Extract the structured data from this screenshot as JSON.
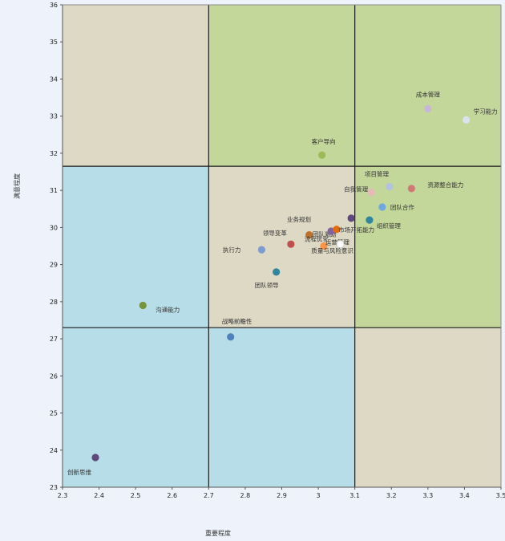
{
  "chart_data": {
    "type": "scatter",
    "title": "",
    "xlabel": "重要程度",
    "ylabel": "满意程度",
    "xlim": [
      2.3,
      3.5
    ],
    "ylim": [
      23,
      36
    ],
    "x_ticks": [
      "2.3",
      "2.4",
      "2.5",
      "2.6",
      "2.7",
      "2.8",
      "2.9",
      "3",
      "3.1",
      "3.2",
      "3.3",
      "3.4",
      "3.5"
    ],
    "y_ticks": [
      "23",
      "24",
      "25",
      "26",
      "27",
      "28",
      "29",
      "30",
      "31",
      "32",
      "33",
      "34",
      "35",
      "36"
    ],
    "quadrant_lines": {
      "x": [
        2.7,
        3.1
      ],
      "y": [
        27.3,
        31.65
      ]
    },
    "quadrant_colors": {
      "green": "#c4d79b",
      "beige": "#ddd9c4",
      "blue": "#b7dde8"
    },
    "points": [
      {
        "label": "执行力",
        "x": 2.845,
        "y": 29.4,
        "color": "#7d9bcf"
      },
      {
        "label": "沟通能力",
        "x": 2.52,
        "y": 27.9,
        "color": "#77933c"
      },
      {
        "label": "创新思维",
        "x": 2.39,
        "y": 23.8,
        "color": "#604a7b"
      },
      {
        "label": "战略前瞻性",
        "x": 2.76,
        "y": 27.05,
        "color": "#4f81bd"
      },
      {
        "label": "团队领导",
        "x": 2.885,
        "y": 28.8,
        "color": "#31859c"
      },
      {
        "label": "领导变革",
        "x": 2.925,
        "y": 29.55,
        "color": "#c0504d"
      },
      {
        "label": "团队激励",
        "x": 2.975,
        "y": 29.8,
        "color": "#c0722b"
      },
      {
        "label": "业务规划",
        "x": 3.035,
        "y": 29.9,
        "color": "#8064a2"
      },
      {
        "label": "客户导向",
        "x": 3.01,
        "y": 31.95,
        "color": "#9bbb59"
      },
      {
        "label": "运营管理",
        "x": 3.015,
        "y": 29.5,
        "color": "#f79646"
      },
      {
        "label": "流程优化",
        "x": 3.05,
        "y": 29.95,
        "color": "#e46c0a"
      },
      {
        "label": "市场开拓能力",
        "x": 3.09,
        "y": 30.25,
        "color": "#5f497a"
      },
      {
        "label": "质量与风险意识",
        "x": 3.06,
        "y": 29.55,
        "color": "#ffffff"
      },
      {
        "label": "自我管理",
        "x": 3.145,
        "y": 30.95,
        "color": "#e6b9b8"
      },
      {
        "label": "组织管理",
        "x": 3.14,
        "y": 30.2,
        "color": "#31859c"
      },
      {
        "label": "项目管理",
        "x": 3.195,
        "y": 31.1,
        "color": "#b3c2e0"
      },
      {
        "label": "团队合作",
        "x": 3.175,
        "y": 30.55,
        "color": "#6fa8dc"
      },
      {
        "label": "资源整合能力",
        "x": 3.255,
        "y": 31.05,
        "color": "#d07a78"
      },
      {
        "label": "成本管理",
        "x": 3.3,
        "y": 33.2,
        "color": "#c9b7d9"
      },
      {
        "label": "学习能力",
        "x": 3.405,
        "y": 32.9,
        "color": "#d9e3ee"
      }
    ]
  }
}
